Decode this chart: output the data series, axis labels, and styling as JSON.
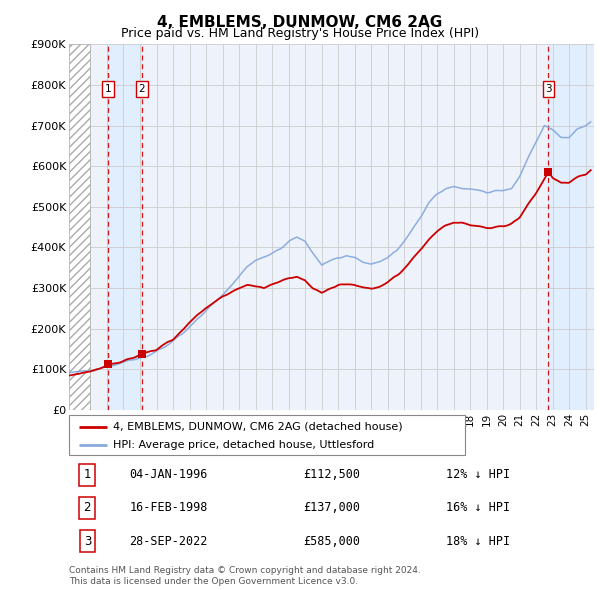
{
  "title": "4, EMBLEMS, DUNMOW, CM6 2AG",
  "subtitle": "Price paid vs. HM Land Registry's House Price Index (HPI)",
  "legend_line1": "4, EMBLEMS, DUNMOW, CM6 2AG (detached house)",
  "legend_line2": "HPI: Average price, detached house, Uttlesford",
  "footer1": "Contains HM Land Registry data © Crown copyright and database right 2024.",
  "footer2": "This data is licensed under the Open Government Licence v3.0.",
  "transactions": [
    {
      "label": "1",
      "date": "04-JAN-1996",
      "price": 112500,
      "price_str": "£112,500",
      "pct": "12%",
      "dir": "↓",
      "year": 1996.04
    },
    {
      "label": "2",
      "date": "16-FEB-1998",
      "price": 137000,
      "price_str": "£137,000",
      "pct": "16%",
      "dir": "↓",
      "year": 1998.12
    },
    {
      "label": "3",
      "date": "28-SEP-2022",
      "price": 585000,
      "price_str": "£585,000",
      "pct": "18%",
      "dir": "↓",
      "year": 2022.74
    }
  ],
  "price_color": "#cc0000",
  "hpi_color": "#88aadd",
  "hatch_color": "#bbbbbb",
  "dashed_color": "#cc0000",
  "shade_color": "#ddeeff",
  "ylim": [
    0,
    900000
  ],
  "xlim_start": 1993.7,
  "xlim_end": 2025.5,
  "yticks": [
    0,
    100000,
    200000,
    300000,
    400000,
    500000,
    600000,
    700000,
    800000,
    900000
  ],
  "ytick_labels": [
    "£0",
    "£100K",
    "£200K",
    "£300K",
    "£400K",
    "£500K",
    "£600K",
    "£700K",
    "£800K",
    "£900K"
  ],
  "xtick_years": [
    1994,
    1995,
    1996,
    1997,
    1998,
    1999,
    2000,
    2001,
    2002,
    2003,
    2004,
    2005,
    2006,
    2007,
    2008,
    2009,
    2010,
    2011,
    2012,
    2013,
    2014,
    2015,
    2016,
    2017,
    2018,
    2019,
    2020,
    2021,
    2022,
    2023,
    2024,
    2025
  ],
  "background_color": "#ffffff",
  "plot_bg_color": "#eef2fb",
  "grid_color": "#cccccc",
  "hpi_waypoints": [
    [
      1993.7,
      90000
    ],
    [
      1994.5,
      95000
    ],
    [
      1995.5,
      102000
    ],
    [
      1996.5,
      112000
    ],
    [
      1997.5,
      122000
    ],
    [
      1998.5,
      135000
    ],
    [
      1999.5,
      155000
    ],
    [
      2000.5,
      185000
    ],
    [
      2001.5,
      225000
    ],
    [
      2002.5,
      265000
    ],
    [
      2003.5,
      305000
    ],
    [
      2004.0,
      330000
    ],
    [
      2004.5,
      355000
    ],
    [
      2005.0,
      370000
    ],
    [
      2005.5,
      375000
    ],
    [
      2006.0,
      385000
    ],
    [
      2006.5,
      395000
    ],
    [
      2007.0,
      415000
    ],
    [
      2007.5,
      425000
    ],
    [
      2008.0,
      415000
    ],
    [
      2008.5,
      385000
    ],
    [
      2009.0,
      355000
    ],
    [
      2009.5,
      365000
    ],
    [
      2010.0,
      375000
    ],
    [
      2010.5,
      380000
    ],
    [
      2011.0,
      375000
    ],
    [
      2011.5,
      365000
    ],
    [
      2012.0,
      360000
    ],
    [
      2012.5,
      365000
    ],
    [
      2013.0,
      375000
    ],
    [
      2013.5,
      390000
    ],
    [
      2014.0,
      415000
    ],
    [
      2014.5,
      445000
    ],
    [
      2015.0,
      475000
    ],
    [
      2015.5,
      510000
    ],
    [
      2016.0,
      530000
    ],
    [
      2016.5,
      545000
    ],
    [
      2017.0,
      550000
    ],
    [
      2017.5,
      545000
    ],
    [
      2018.0,
      545000
    ],
    [
      2018.5,
      540000
    ],
    [
      2019.0,
      535000
    ],
    [
      2019.5,
      540000
    ],
    [
      2020.0,
      540000
    ],
    [
      2020.5,
      545000
    ],
    [
      2021.0,
      575000
    ],
    [
      2021.5,
      620000
    ],
    [
      2022.0,
      660000
    ],
    [
      2022.5,
      700000
    ],
    [
      2023.0,
      690000
    ],
    [
      2023.5,
      670000
    ],
    [
      2024.0,
      670000
    ],
    [
      2024.5,
      690000
    ],
    [
      2025.0,
      700000
    ],
    [
      2025.3,
      710000
    ]
  ],
  "price_waypoints": [
    [
      1993.7,
      85000
    ],
    [
      1994.5,
      90000
    ],
    [
      1995.5,
      100000
    ],
    [
      1996.04,
      112500
    ],
    [
      1996.5,
      115000
    ],
    [
      1997.0,
      120000
    ],
    [
      1997.5,
      128000
    ],
    [
      1998.12,
      137000
    ],
    [
      1998.5,
      142000
    ],
    [
      1999.0,
      150000
    ],
    [
      1999.5,
      162000
    ],
    [
      2000.0,
      175000
    ],
    [
      2000.5,
      195000
    ],
    [
      2001.0,
      215000
    ],
    [
      2001.5,
      235000
    ],
    [
      2002.0,
      250000
    ],
    [
      2002.5,
      265000
    ],
    [
      2003.0,
      280000
    ],
    [
      2003.5,
      292000
    ],
    [
      2004.0,
      300000
    ],
    [
      2004.5,
      308000
    ],
    [
      2005.0,
      305000
    ],
    [
      2005.5,
      300000
    ],
    [
      2006.0,
      308000
    ],
    [
      2006.5,
      315000
    ],
    [
      2007.0,
      325000
    ],
    [
      2007.5,
      330000
    ],
    [
      2008.0,
      320000
    ],
    [
      2008.5,
      300000
    ],
    [
      2009.0,
      290000
    ],
    [
      2009.5,
      298000
    ],
    [
      2010.0,
      308000
    ],
    [
      2010.5,
      312000
    ],
    [
      2011.0,
      308000
    ],
    [
      2011.5,
      300000
    ],
    [
      2012.0,
      298000
    ],
    [
      2012.5,
      302000
    ],
    [
      2013.0,
      312000
    ],
    [
      2013.5,
      328000
    ],
    [
      2014.0,
      348000
    ],
    [
      2014.5,
      372000
    ],
    [
      2015.0,
      395000
    ],
    [
      2015.5,
      420000
    ],
    [
      2016.0,
      440000
    ],
    [
      2016.5,
      455000
    ],
    [
      2017.0,
      462000
    ],
    [
      2017.5,
      460000
    ],
    [
      2018.0,
      455000
    ],
    [
      2018.5,
      452000
    ],
    [
      2019.0,
      448000
    ],
    [
      2019.5,
      450000
    ],
    [
      2020.0,
      452000
    ],
    [
      2020.5,
      458000
    ],
    [
      2021.0,
      475000
    ],
    [
      2021.5,
      505000
    ],
    [
      2022.0,
      535000
    ],
    [
      2022.74,
      585000
    ],
    [
      2023.0,
      570000
    ],
    [
      2023.5,
      558000
    ],
    [
      2024.0,
      560000
    ],
    [
      2024.5,
      572000
    ],
    [
      2025.0,
      580000
    ],
    [
      2025.3,
      588000
    ]
  ]
}
